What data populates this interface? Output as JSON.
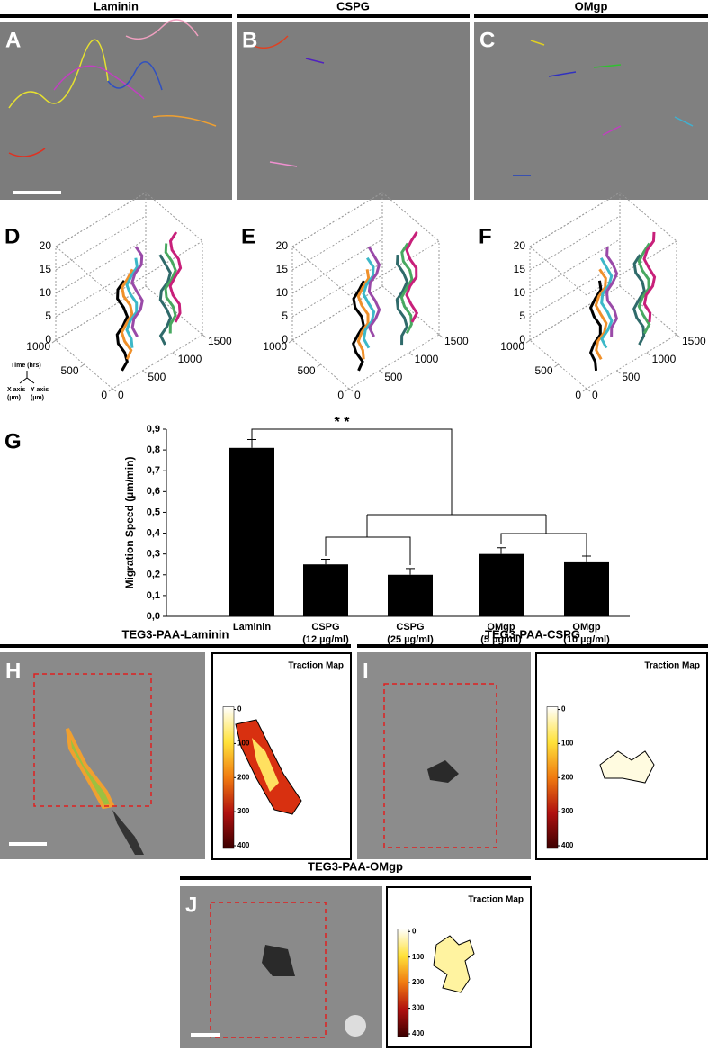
{
  "headers": [
    "Laminin",
    "CSPG",
    "OMgp"
  ],
  "photo_letters": [
    "A",
    "B",
    "C"
  ],
  "plots_3d": [
    {
      "letter": "D",
      "zlim": [
        0,
        20
      ],
      "zticks": [
        0,
        5,
        10,
        15,
        20
      ],
      "xlim": [
        0,
        1000
      ],
      "xticks": [
        0,
        500,
        1000
      ],
      "ylim": [
        0,
        1500
      ],
      "yticks": [
        0,
        500,
        1000,
        1500
      ]
    },
    {
      "letter": "E",
      "zlim": [
        0,
        20
      ],
      "zticks": [
        0,
        5,
        10,
        15,
        20
      ],
      "xlim": [
        0,
        1000
      ],
      "xticks": [
        0,
        500,
        1000
      ],
      "ylim": [
        0,
        1500
      ],
      "yticks": [
        0,
        500,
        1000,
        1500
      ]
    },
    {
      "letter": "F",
      "zlim": [
        0,
        20
      ],
      "zticks": [
        0,
        5,
        10,
        15,
        20
      ],
      "xlim": [
        0,
        1000
      ],
      "xticks": [
        0,
        500,
        1000
      ],
      "ylim": [
        0,
        1500
      ],
      "yticks": [
        0,
        500,
        1000,
        1500
      ]
    }
  ],
  "axes_legend": {
    "time": "Time (hrs)",
    "x_axis": [
      "X axis",
      "(µm)"
    ],
    "y_axis": [
      "Y axis",
      "(µm)"
    ]
  },
  "chart_data": {
    "type": "bar",
    "letter": "G",
    "ylabel": "Migration Speed (µm/min)",
    "categories": [
      "Laminin",
      "CSPG",
      "CSPG",
      "OMgp",
      "OMgp"
    ],
    "category_notes": [
      null,
      "(12 µg/ml)",
      "(25 µg/ml)",
      "(5 µg/ml)",
      "(10 µg/ml)"
    ],
    "values": [
      0.81,
      0.25,
      0.2,
      0.3,
      0.26
    ],
    "errors": [
      0.04,
      0.025,
      0.03,
      0.03,
      0.03
    ],
    "color": "#000000",
    "ylim": [
      0,
      0.9
    ],
    "yticks": [
      {
        "value": 0,
        "label": "0,0"
      },
      {
        "value": 0.1,
        "label": "0,1"
      },
      {
        "value": 0.2,
        "label": "0,2"
      },
      {
        "value": 0.3,
        "label": "0,3"
      },
      {
        "value": 0.4,
        "label": "0,4"
      },
      {
        "value": 0.5,
        "label": "0,5"
      },
      {
        "value": 0.6,
        "label": "0,6"
      },
      {
        "value": 0.7,
        "label": "0,7"
      },
      {
        "value": 0.8,
        "label": "0,8"
      },
      {
        "value": 0.9,
        "label": "0,9"
      }
    ],
    "annotation": "* *"
  },
  "traction": [
    {
      "title": "TEG3-PAA-Laminin",
      "letter": "H",
      "map_title": "Traction Map",
      "colorbar_ticks": [
        0,
        100,
        200,
        300,
        400
      ]
    },
    {
      "title": "TEG3-PAA-CSPG",
      "letter": "I",
      "map_title": "Traction Map",
      "colorbar_ticks": [
        0,
        100,
        200,
        300,
        400
      ]
    },
    {
      "title": "TEG3-PAA-OMgp",
      "letter": "J",
      "map_title": "Traction Map",
      "colorbar_ticks": [
        0,
        100,
        200,
        300,
        400
      ]
    }
  ]
}
